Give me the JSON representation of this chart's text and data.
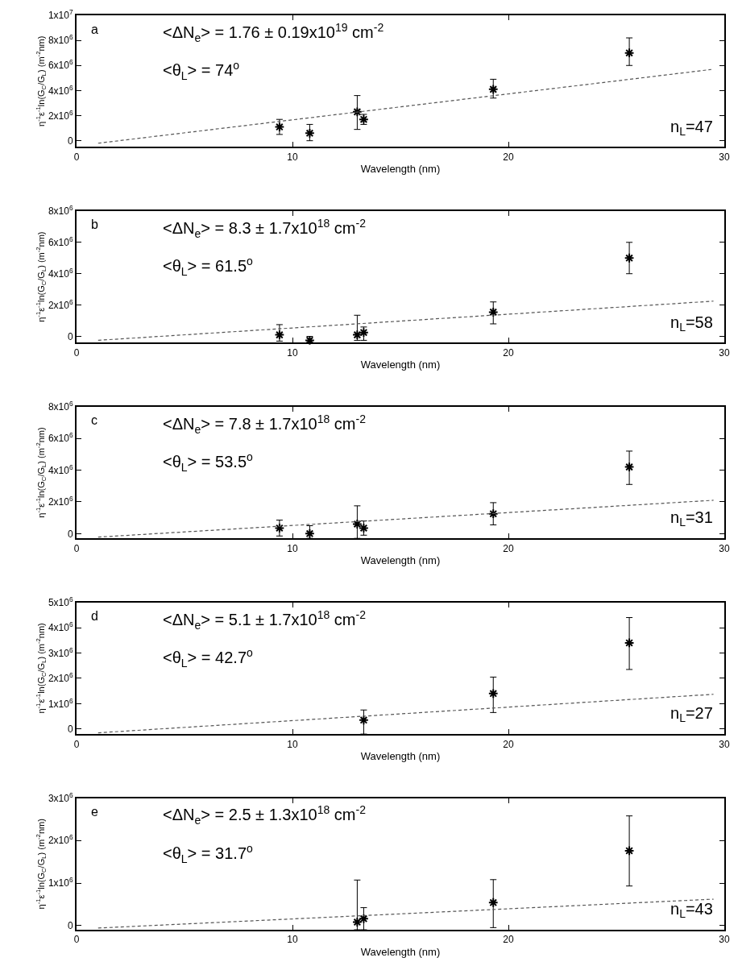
{
  "chart_data": [
    {
      "type": "scatter",
      "xlabel": "Wavelength (nm)",
      "ylabel": "η$^{-1}$ε$^{-1}$ln(G$_{C}$/G$_{L}$) (m$^{-2}$nm)",
      "xlim": [
        0,
        30
      ],
      "xticks": [
        0,
        10,
        20,
        30
      ],
      "ylim": [
        -500000,
        10000000
      ],
      "yticks": [
        0,
        {
          "value": 2000000,
          "label": "2x10$^{6}$"
        },
        {
          "value": 4000000,
          "label": "4x10$^{6}$"
        },
        {
          "value": 6000000,
          "label": "6x10$^{6}$"
        },
        {
          "value": 8000000,
          "label": "8x10$^{6}$"
        },
        {
          "value": 10000000,
          "label": "1x10$^{7}$"
        }
      ],
      "x": [
        9.4,
        10.8,
        13.0,
        13.3,
        19.3,
        25.6
      ],
      "series": [
        {
          "color": "#000000",
          "marker": "cross",
          "values": [
            1100000,
            600000,
            2300000,
            1700000,
            4100000,
            7000000
          ],
          "errors": [
            [
              500000,
              1700000
            ],
            [
              0,
              1300000
            ],
            [
              900000,
              3600000
            ],
            [
              1300000,
              2100000
            ],
            [
              3400000,
              4900000
            ],
            [
              6000000,
              8200000
            ]
          ]
        },
        {
          "type": "line",
          "color": "#555555",
          "line_style": "dashed",
          "marker": "none",
          "x": [
            1,
            29.4
          ],
          "values": [
            -200000,
            5680000
          ]
        }
      ],
      "annotations": [
        "a",
        "<ΔN$_{e}$> = 1.76 ± 0.19x10$^{19}$ cm$^{-2}$",
        "<θ$_{L}$> = 74$^{o}$",
        "n$_{L}$=47"
      ]
    },
    {
      "type": "scatter",
      "xlabel": "Wavelength (nm)",
      "ylabel": "η$^{-1}$ε$^{-1}$ln(G$_{C}$/G$_{L}$) (m$^{-2}$nm)",
      "xlim": [
        0,
        30
      ],
      "xticks": [
        0,
        10,
        20,
        30
      ],
      "ylim": [
        -400000,
        8000000
      ],
      "yticks": [
        0,
        {
          "value": 2000000,
          "label": "2x10$^{6}$"
        },
        {
          "value": 4000000,
          "label": "4x10$^{6}$"
        },
        {
          "value": 6000000,
          "label": "6x10$^{6}$"
        },
        {
          "value": 8000000,
          "label": "8x10$^{6}$"
        }
      ],
      "x": [
        9.4,
        10.8,
        13.0,
        13.3,
        19.3,
        25.6
      ],
      "series": [
        {
          "color": "#000000",
          "marker": "cross",
          "values": [
            100000,
            -250000,
            100000,
            250000,
            1550000,
            5000000
          ],
          "errors": [
            [
              -300000,
              750000
            ],
            [
              -350000,
              0
            ],
            [
              -250000,
              1350000
            ],
            [
              -250000,
              600000
            ],
            [
              800000,
              2200000
            ],
            [
              4000000,
              6000000
            ]
          ]
        },
        {
          "type": "line",
          "color": "#555555",
          "line_style": "dashed",
          "marker": "none",
          "x": [
            1,
            29.5
          ],
          "values": [
            -250000,
            2250000
          ]
        }
      ],
      "annotations": [
        "b",
        "<ΔN$_{e}$> = 8.3 ± 1.7x10$^{18}$ cm$^{-2}$",
        "<θ$_{L}$> = 61.5$^{o}$",
        "n$_{L}$=58"
      ]
    },
    {
      "type": "scatter",
      "xlabel": "Wavelength (nm)",
      "ylabel": "η$^{-1}$ε$^{-1}$ln(G$_{C}$/G$_{L}$) (m$^{-2}$nm)",
      "xlim": [
        0,
        30
      ],
      "xticks": [
        0,
        10,
        20,
        30
      ],
      "ylim": [
        -300000,
        8000000
      ],
      "yticks": [
        0,
        {
          "value": 2000000,
          "label": "2x10$^{6}$"
        },
        {
          "value": 4000000,
          "label": "4x10$^{6}$"
        },
        {
          "value": 6000000,
          "label": "6x10$^{6}$"
        },
        {
          "value": 8000000,
          "label": "8x10$^{6}$"
        }
      ],
      "x": [
        9.4,
        10.8,
        13.0,
        13.3,
        19.3,
        25.6
      ],
      "series": [
        {
          "color": "#000000",
          "marker": "cross",
          "values": [
            350000,
            0,
            600000,
            350000,
            1250000,
            4200000
          ],
          "errors": [
            [
              -150000,
              850000
            ],
            [
              -300000,
              500000
            ],
            [
              -300000,
              1750000
            ],
            [
              -100000,
              800000
            ],
            [
              550000,
              1950000
            ],
            [
              3100000,
              5200000
            ]
          ]
        },
        {
          "type": "line",
          "color": "#555555",
          "line_style": "dashed",
          "marker": "none",
          "x": [
            1,
            29.5
          ],
          "values": [
            -220000,
            2100000
          ]
        }
      ],
      "annotations": [
        "c",
        "<ΔN$_{e}$> = 7.8 ± 1.7x10$^{18}$ cm$^{-2}$",
        "<θ$_{L}$> = 53.5$^{o}$",
        "n$_{L}$=31"
      ]
    },
    {
      "type": "scatter",
      "xlabel": "Wavelength (nm)",
      "ylabel": "η$^{-1}$ε$^{-1}$ln(G$_{C}$/G$_{L}$) (m$^{-2}$nm)",
      "xlim": [
        0,
        30
      ],
      "xticks": [
        0,
        10,
        20,
        30
      ],
      "ylim": [
        -200000,
        5000000
      ],
      "yticks": [
        0,
        {
          "value": 1000000,
          "label": "1x10$^{6}$"
        },
        {
          "value": 2000000,
          "label": "2x10$^{6}$"
        },
        {
          "value": 3000000,
          "label": "3x10$^{6}$"
        },
        {
          "value": 4000000,
          "label": "4x10$^{6}$"
        },
        {
          "value": 5000000,
          "label": "5x10$^{6}$"
        }
      ],
      "x": [
        13.3,
        19.3,
        25.6
      ],
      "series": [
        {
          "color": "#000000",
          "marker": "cross",
          "values": [
            350000,
            1400000,
            3400000
          ],
          "errors": [
            [
              -200000,
              750000
            ],
            [
              650000,
              2050000
            ],
            [
              2350000,
              4400000
            ]
          ]
        },
        {
          "type": "line",
          "color": "#555555",
          "line_style": "dashed",
          "marker": "none",
          "x": [
            1,
            29.5
          ],
          "values": [
            -150000,
            1370000
          ]
        }
      ],
      "annotations": [
        "d",
        "<ΔN$_{e}$> = 5.1 ± 1.7x10$^{18}$ cm$^{-2}$",
        "<θ$_{L}$> = 42.7$^{o}$",
        "n$_{L}$=27"
      ]
    },
    {
      "type": "scatter",
      "xlabel": "Wavelength (nm)",
      "ylabel": "η$^{-1}$ε$^{-1}$ln(G$_{C}$/G$_{L}$) (m$^{-2}$nm)",
      "xlim": [
        0,
        30
      ],
      "xticks": [
        0,
        10,
        20,
        30
      ],
      "ylim": [
        -100000,
        3000000
      ],
      "yticks": [
        0,
        {
          "value": 1000000,
          "label": "1x10$^{6}$"
        },
        {
          "value": 2000000,
          "label": "2x10$^{6}$"
        },
        {
          "value": 3000000,
          "label": "3x10$^{6}$"
        }
      ],
      "x": [
        13.0,
        13.3,
        19.3,
        25.6
      ],
      "series": [
        {
          "color": "#000000",
          "marker": "cross",
          "values": [
            80000,
            160000,
            540000,
            1760000
          ],
          "errors": [
            [
              -100000,
              1070000
            ],
            [
              -100000,
              420000
            ],
            [
              -50000,
              1080000
            ],
            [
              930000,
              2580000
            ]
          ]
        },
        {
          "type": "line",
          "color": "#555555",
          "line_style": "dashed",
          "marker": "none",
          "x": [
            1,
            29.5
          ],
          "values": [
            -60000,
            620000
          ]
        }
      ],
      "annotations": [
        "e",
        "<ΔN$_{e}$> = 2.5 ± 1.3x10$^{18}$ cm$^{-2}$",
        "<θ$_{L}$> = 31.7$^{o}$",
        "n$_{L}$=43"
      ]
    }
  ]
}
